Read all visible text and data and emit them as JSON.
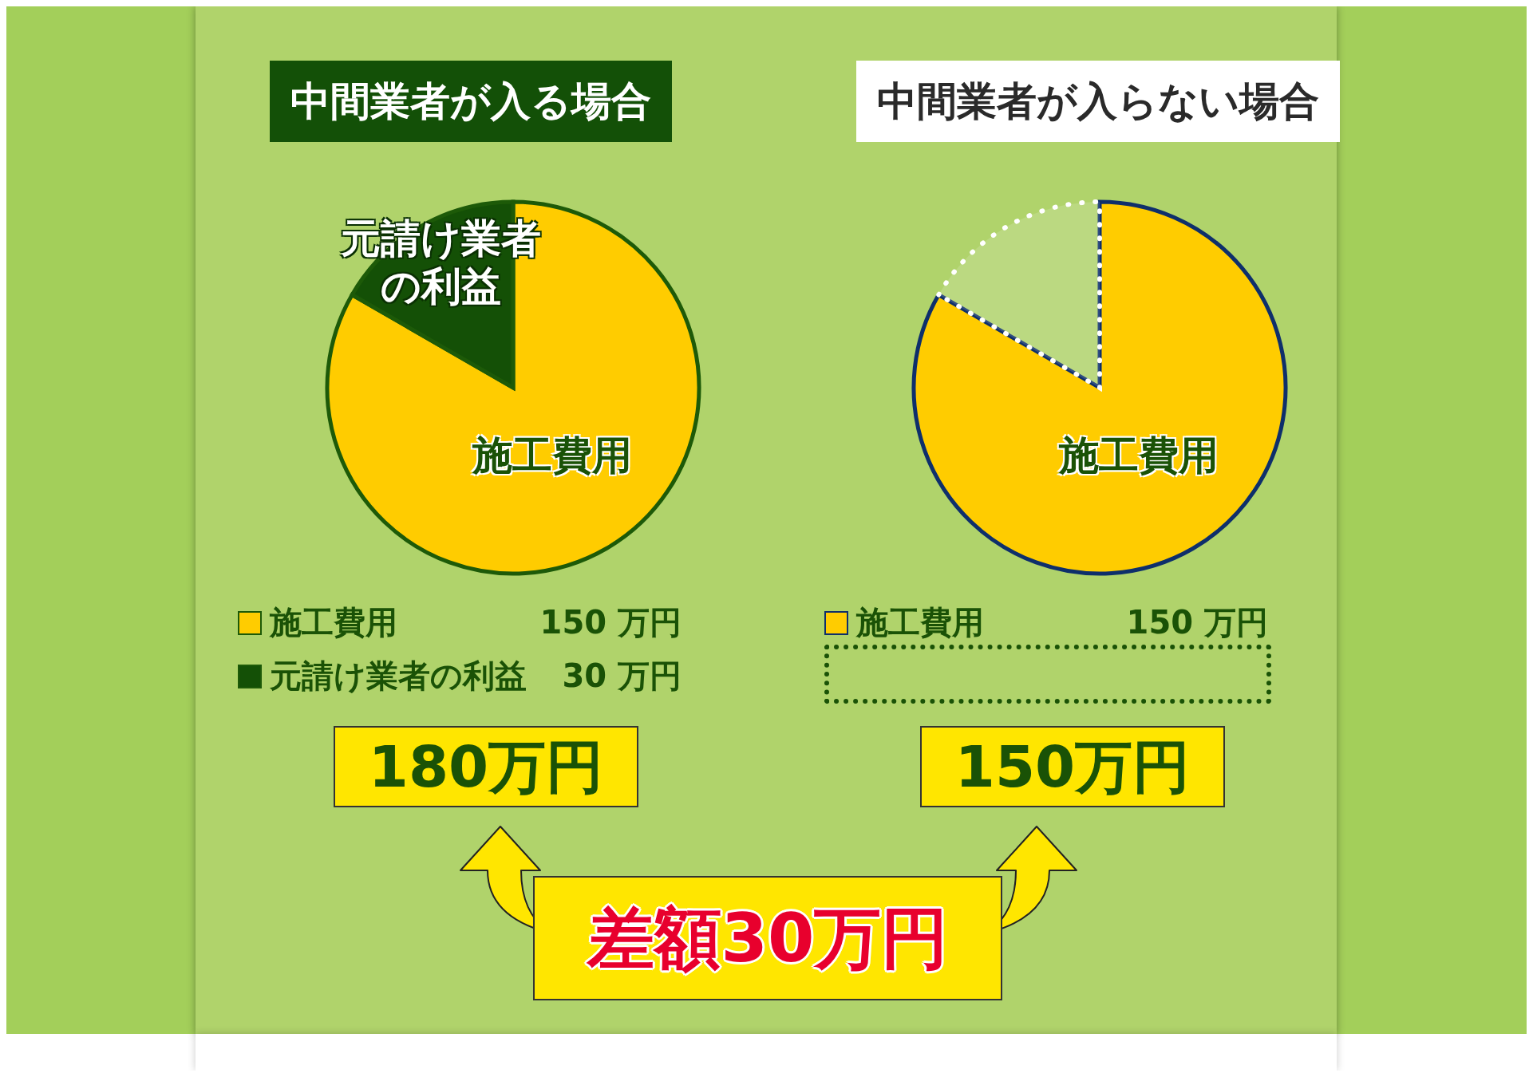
{
  "chart_data": [
    {
      "type": "pie",
      "title": "中間業者が入る場合",
      "categories": [
        "施工費用",
        "元請け業者の利益"
      ],
      "values": [
        150,
        30
      ],
      "colors": [
        "#ffcc00",
        "#145006"
      ],
      "value_labels": [
        "150 万円",
        "30 万円"
      ],
      "legend": "bottom",
      "totals": [
        "180万円"
      ]
    },
    {
      "type": "pie",
      "title": "中間業者が入らない場合",
      "categories": [
        "施工費用",
        null
      ],
      "values": [
        150,
        30
      ],
      "colors": [
        "#ffcc00",
        "#ffffff"
      ],
      "value_labels": [
        "150 万円",
        null
      ],
      "legend": "bottom",
      "totals": [
        "150万円"
      ]
    },
    {
      "type": "other",
      "annotations": [
        "差額30万円"
      ]
    }
  ]
}
